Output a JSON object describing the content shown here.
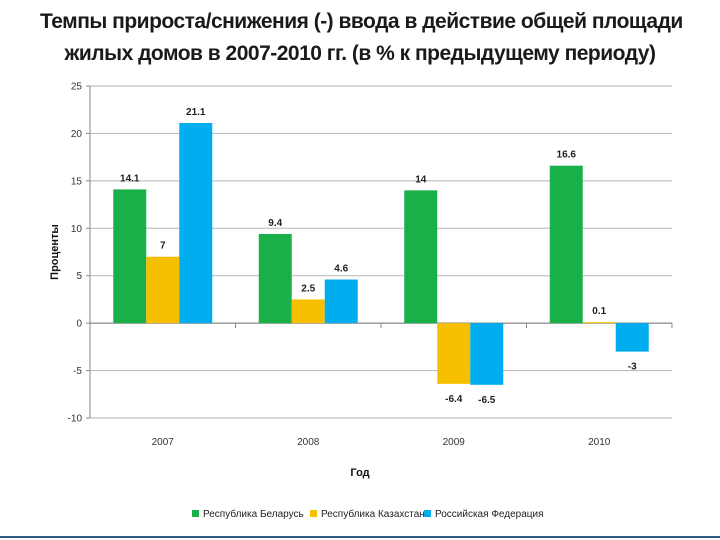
{
  "title_line1": "Темпы прироста/снижения (-) ввода в действие общей площади",
  "title_line2": "жилых домов в 2007-2010 гг. (в % к предыдущему периоду)",
  "chart_data": {
    "type": "bar",
    "title": "Темпы прироста/снижения (-) ввода в действие общей площади жилых домов в 2007-2010 гг. (в % к предыдущему периоду)",
    "xlabel": "Год",
    "ylabel": "Проценты",
    "categories": [
      "2007",
      "2008",
      "2009",
      "2010"
    ],
    "ylim": [
      -10,
      25
    ],
    "yticks": [
      -10,
      -5,
      0,
      5,
      10,
      15,
      20,
      25
    ],
    "grid": true,
    "legend_position": "bottom",
    "series": [
      {
        "name": "Республика Беларусь",
        "color": "#19b04a",
        "values": [
          14.1,
          9.4,
          14,
          16.6
        ],
        "labels": [
          "14.1",
          "9.4",
          "14",
          "16.6"
        ]
      },
      {
        "name": "Республика Казахстан",
        "color": "#f6c000",
        "values": [
          7,
          2.5,
          -6.4,
          0.1
        ],
        "labels": [
          "7",
          "2.5",
          "-6.4",
          "0.1"
        ]
      },
      {
        "name": "Российская Федерация",
        "color": "#00adef",
        "values": [
          21.1,
          4.6,
          -6.5,
          -3
        ],
        "labels": [
          "21.1",
          "4.6",
          "-6.5",
          "-3"
        ]
      }
    ]
  }
}
